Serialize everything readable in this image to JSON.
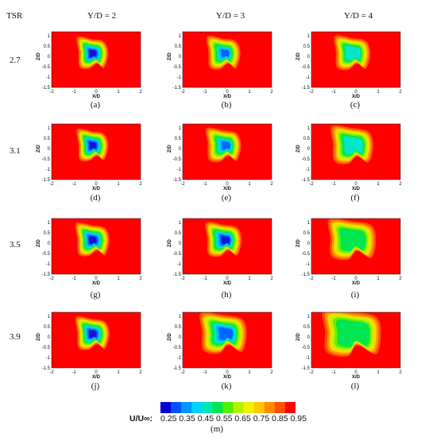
{
  "header": {
    "tsr": "TSR",
    "cols": [
      "Y/D = 2",
      "Y/D = 3",
      "Y/D = 4"
    ]
  },
  "rows": [
    "2.7",
    "3.1",
    "3.5",
    "3.9"
  ],
  "panel_letters": [
    "(a)",
    "(b)",
    "(c)",
    "(d)",
    "(e)",
    "(f)",
    "(g)",
    "(h)",
    "(i)",
    "(j)",
    "(k)",
    "(l)"
  ],
  "colorbar": {
    "label": "U/U∞:",
    "ticks": "0.25 0.35 0.45 0.55 0.65 0.75 0.85 0.95",
    "letter": "(m)",
    "colors": [
      "#0000d6",
      "#0050ff",
      "#0096ff",
      "#00d2ff",
      "#00e6b4",
      "#00e650",
      "#50f000",
      "#b4f000",
      "#f0f000",
      "#ffc800",
      "#ff8c00",
      "#ff5000",
      "#ff0000"
    ]
  },
  "chart_data": {
    "type": "heatmap",
    "quantity": "U/U∞",
    "x_axis": {
      "label": "X/D",
      "range": [
        -2,
        2
      ],
      "ticks": [
        "-2",
        "-1",
        "0",
        "1",
        "2"
      ]
    },
    "y_axis": {
      "label": "Z/D",
      "range": [
        -1.5,
        1.2
      ],
      "ticks": [
        "1",
        "0.5",
        "0",
        "-0.5",
        "-1",
        "-1.5"
      ]
    },
    "row_values_tsr": [
      2.7,
      3.1,
      3.5,
      3.9
    ],
    "col_values_yd": [
      2,
      3,
      4
    ],
    "color_scale": [
      0.25,
      0.35,
      0.45,
      0.55,
      0.65,
      0.75,
      0.85,
      0.95
    ],
    "background": "#ff0000"
  }
}
